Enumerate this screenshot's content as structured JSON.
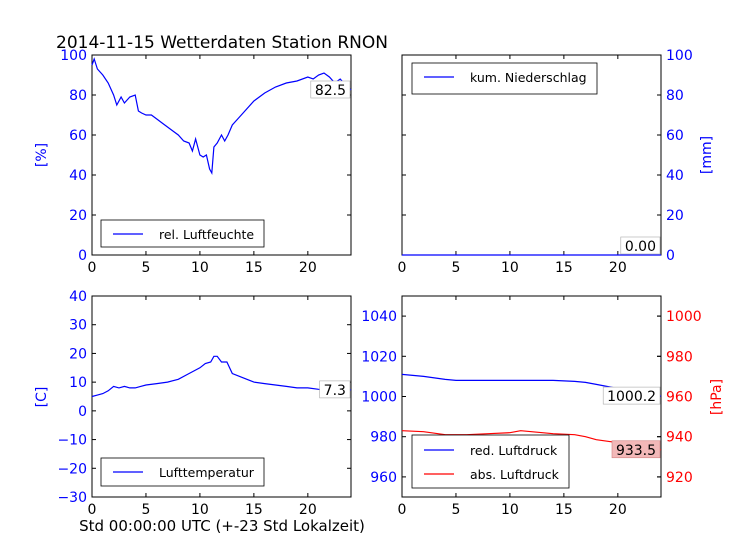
{
  "title": "2014-11-15 Wetterdaten Station RNON",
  "footer_xlabel": "Std 00:00:00 UTC (+-23 Std Lokalzeit)",
  "colors": {
    "blue": "#0000ff",
    "red": "#ff0000",
    "axis": "#000000"
  },
  "chart_data": [
    {
      "type": "line",
      "xlim": [
        0,
        24
      ],
      "ylim": [
        0,
        100
      ],
      "xticks": [
        "0",
        "5",
        "10",
        "15",
        "20"
      ],
      "yticks": [
        "0",
        "20",
        "40",
        "60",
        "80",
        "100"
      ],
      "ylabel": "[%]",
      "legend": "bottom-left",
      "series": [
        {
          "name": "rel. Luftfeuchte",
          "color": "#0000ff",
          "x": [
            0,
            0.2,
            0.5,
            1,
            1.5,
            2,
            2.3,
            2.7,
            3,
            3.5,
            4,
            4.3,
            4.6,
            5,
            5.5,
            6,
            6.5,
            7,
            7.5,
            8,
            8.5,
            9,
            9.3,
            9.6,
            10,
            10.3,
            10.6,
            10.9,
            11.1,
            11.3,
            11.6,
            12,
            12.3,
            12.6,
            13,
            13.5,
            14,
            15,
            16,
            17,
            18,
            19,
            20,
            20.5,
            21,
            21.5,
            22,
            22.5,
            23,
            23.5,
            24
          ],
          "y": [
            95,
            98,
            93,
            90,
            86,
            80,
            75,
            79,
            76,
            79,
            80,
            72,
            71,
            70,
            70,
            68,
            66,
            64,
            62,
            60,
            57,
            56,
            52,
            58,
            50,
            49,
            50,
            43,
            41,
            54,
            56,
            60,
            57,
            60,
            65,
            68,
            71,
            77,
            81,
            84,
            86,
            87,
            89,
            88,
            90,
            91,
            89,
            86,
            88,
            85,
            82.5
          ]
        }
      ],
      "annotation": "82.5"
    },
    {
      "type": "line",
      "xlim": [
        0,
        24
      ],
      "ylim": [
        0,
        100
      ],
      "xticks": [
        "0",
        "5",
        "10",
        "15",
        "20"
      ],
      "yticks": [
        "0",
        "20",
        "40",
        "60",
        "80",
        "100"
      ],
      "ylabel": "[mm]",
      "legend": "top-left",
      "series": [
        {
          "name": "kum. Niederschlag",
          "color": "#0000ff",
          "x": [
            0,
            24
          ],
          "y": [
            0,
            0
          ]
        }
      ],
      "annotation": "0.00"
    },
    {
      "type": "line",
      "xlim": [
        0,
        24
      ],
      "ylim": [
        -30,
        40
      ],
      "xticks": [
        "0",
        "5",
        "10",
        "15",
        "20"
      ],
      "yticks": [
        "−30",
        "−20",
        "−10",
        "0",
        "10",
        "20",
        "30",
        "40"
      ],
      "ylabel": "[C]",
      "legend": "bottom-left",
      "series": [
        {
          "name": "Lufttemperatur",
          "color": "#0000ff",
          "x": [
            0,
            0.5,
            1,
            1.5,
            2,
            2.5,
            3,
            3.5,
            4,
            4.5,
            5,
            6,
            7,
            8,
            9,
            10,
            10.5,
            11,
            11.3,
            11.6,
            12,
            12.5,
            13,
            14,
            15,
            16,
            17,
            18,
            19,
            20,
            21,
            22,
            23,
            24
          ],
          "y": [
            5,
            5.5,
            6,
            7,
            8.5,
            8,
            8.5,
            8,
            8,
            8.5,
            9,
            9.5,
            10,
            11,
            13,
            15,
            16.5,
            17,
            19,
            19,
            17,
            17,
            13,
            11.5,
            10,
            9.5,
            9,
            8.5,
            8,
            8,
            7.5,
            7.3,
            7.5,
            7.3
          ]
        }
      ],
      "annotation": "7.3"
    },
    {
      "type": "line",
      "xlim": [
        0,
        24
      ],
      "ylim": [
        950,
        1050
      ],
      "xticks": [
        "0",
        "5",
        "10",
        "15",
        "20"
      ],
      "yticks": [
        "960",
        "980",
        "1000",
        "1020",
        "1040"
      ],
      "ylim_right": [
        910,
        1010
      ],
      "yticks_right": [
        "920",
        "940",
        "960",
        "980",
        "1000"
      ],
      "ylabel_right": "[hPa]",
      "legend": "bottom-left",
      "series": [
        {
          "name": "red. Luftdruck",
          "color": "#0000ff",
          "axis": "left",
          "x": [
            0,
            2,
            4,
            5,
            6,
            8,
            10,
            12,
            14,
            16,
            17,
            18,
            20,
            22,
            24
          ],
          "y": [
            1011,
            1010,
            1008.5,
            1008,
            1008,
            1008,
            1008,
            1008,
            1008,
            1007.5,
            1007,
            1006,
            1004,
            1002,
            1000.2
          ]
        },
        {
          "name": "abs. Luftdruck",
          "color": "#ff0000",
          "axis": "right",
          "x": [
            0,
            2,
            4,
            5,
            6,
            8,
            10,
            11,
            12,
            14,
            16,
            17,
            18,
            20,
            22,
            24
          ],
          "y": [
            943,
            942.5,
            941,
            941,
            941,
            941.5,
            942,
            943,
            942.5,
            941.5,
            941,
            940,
            938.5,
            937,
            935,
            933.5
          ]
        }
      ],
      "annotation": "1000.2",
      "annotation_right": "933.5"
    }
  ]
}
